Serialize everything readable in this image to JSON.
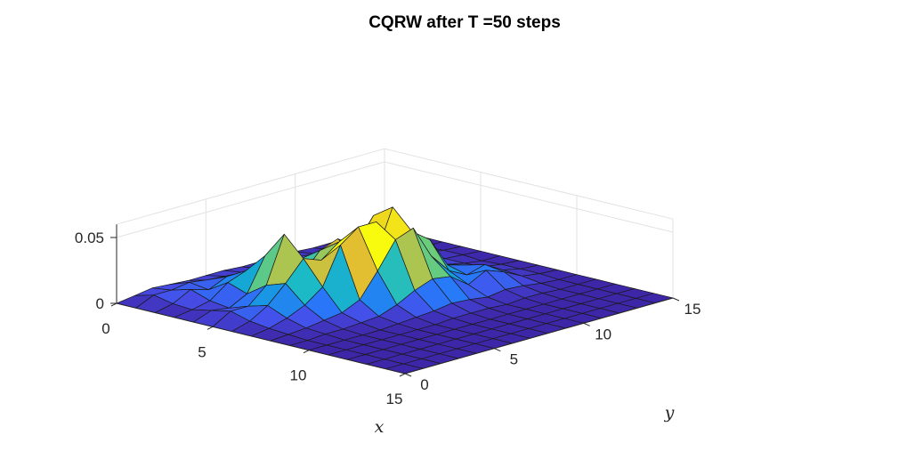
{
  "chart_data": {
    "type": "surface",
    "title": "CQRW after T =50 steps",
    "xlabel": "x",
    "ylabel": "y",
    "zlabel": "",
    "xlim": [
      0,
      15
    ],
    "ylim": [
      0,
      15
    ],
    "zlim": [
      0,
      0.06
    ],
    "xticks": [
      "0",
      "5",
      "10",
      "15"
    ],
    "yticks": [
      "0",
      "5",
      "10",
      "15"
    ],
    "zticks": [
      "0",
      "0.05"
    ],
    "grid": true,
    "colormap": "parula",
    "colors": {
      "colormap_low": "#3e26a8",
      "colormap_mid": "#1bbac6",
      "colormap_high": "#f9fb0e",
      "grid": "#e2e2e2",
      "axis": "#262626"
    },
    "x": [
      0,
      1,
      2,
      3,
      4,
      5,
      6,
      7,
      8,
      9,
      10,
      11,
      12,
      13,
      14,
      15
    ],
    "y": [
      0,
      1,
      2,
      3,
      4,
      5,
      6,
      7,
      8,
      9,
      10,
      11,
      12,
      13,
      14,
      15
    ],
    "z": [
      [
        0,
        0,
        0,
        0,
        0,
        0,
        0,
        0,
        0,
        0,
        0,
        0,
        0,
        0,
        0,
        0
      ],
      [
        0.002,
        0.006,
        0.003,
        0.002,
        0.005,
        0.008,
        0.004,
        0.002,
        0.001,
        0,
        0,
        0,
        0,
        0,
        0,
        0
      ],
      [
        0.004,
        0.006,
        0.01,
        0.005,
        0.003,
        0.008,
        0.012,
        0.006,
        0.002,
        0.001,
        0,
        0,
        0,
        0,
        0,
        0
      ],
      [
        0.003,
        0.008,
        0.006,
        0.015,
        0.01,
        0.02,
        0.025,
        0.012,
        0.004,
        0.001,
        0,
        0,
        0,
        0,
        0,
        0
      ],
      [
        0.002,
        0.006,
        0.012,
        0.02,
        0.035,
        0.055,
        0.04,
        0.022,
        0.006,
        0.002,
        0,
        0,
        0,
        0,
        0,
        0
      ],
      [
        0.002,
        0.005,
        0.01,
        0.025,
        0.03,
        0.02,
        0.035,
        0.05,
        0.012,
        0.003,
        0.001,
        0,
        0,
        0,
        0,
        0
      ],
      [
        0.002,
        0.004,
        0.008,
        0.015,
        0.025,
        0.035,
        0.045,
        0.06,
        0.03,
        0.008,
        0.002,
        0,
        0,
        0,
        0,
        0
      ],
      [
        0.001,
        0.003,
        0.006,
        0.012,
        0.02,
        0.04,
        0.03,
        0.06,
        0.05,
        0.015,
        0.003,
        0.001,
        0,
        0,
        0,
        0
      ],
      [
        0.001,
        0.003,
        0.005,
        0.01,
        0.018,
        0.03,
        0.025,
        0.04,
        0.055,
        0.02,
        0.005,
        0.001,
        0,
        0,
        0,
        0
      ],
      [
        0.001,
        0.004,
        0.006,
        0.012,
        0.022,
        0.05,
        0.06,
        0.045,
        0.03,
        0.018,
        0.004,
        0.001,
        0,
        0,
        0,
        0
      ],
      [
        0.001,
        0.003,
        0.008,
        0.015,
        0.03,
        0.045,
        0.025,
        0.035,
        0.015,
        0.008,
        0.002,
        0,
        0,
        0,
        0,
        0
      ],
      [
        0,
        0.002,
        0.005,
        0.012,
        0.02,
        0.018,
        0.01,
        0.012,
        0.008,
        0.015,
        0.004,
        0.001,
        0,
        0,
        0,
        0
      ],
      [
        0,
        0.001,
        0.003,
        0.006,
        0.008,
        0.006,
        0.005,
        0.008,
        0.012,
        0.01,
        0.003,
        0.001,
        0,
        0,
        0,
        0
      ],
      [
        0,
        0,
        0.001,
        0.002,
        0.003,
        0.002,
        0.002,
        0.003,
        0.004,
        0.003,
        0.001,
        0,
        0,
        0,
        0,
        0
      ],
      [
        0,
        0,
        0,
        0,
        0.001,
        0.001,
        0,
        0.001,
        0.001,
        0.001,
        0,
        0,
        0,
        0,
        0,
        0
      ],
      [
        0,
        0,
        0,
        0,
        0,
        0,
        0,
        0,
        0,
        0,
        0,
        0,
        0,
        0,
        0,
        0
      ]
    ]
  }
}
